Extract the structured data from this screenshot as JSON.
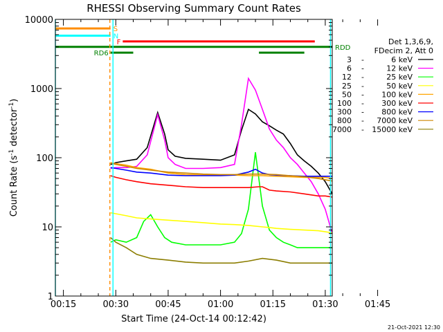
{
  "chart_data": {
    "type": "line",
    "title": "RHESSI Observing Summary Count Rates",
    "xlabel": "Start Time (24-Oct-14 00:12:42)",
    "ylabel_main": "Count Rate (s",
    "ylabel_sup1": "-1",
    "ylabel_mid": " detector",
    "ylabel_sup2": "-1",
    "ylabel_end": ")",
    "y_scale": "log",
    "ylim": [
      1,
      10000
    ],
    "xlim_minutes": [
      12.7,
      92
    ],
    "x_ticks": [
      {
        "min": 15,
        "label": "00:15"
      },
      {
        "min": 30,
        "label": "00:30"
      },
      {
        "min": 45,
        "label": "00:45"
      },
      {
        "min": 60,
        "label": "01:00"
      },
      {
        "min": 75,
        "label": "01:15"
      },
      {
        "min": 90,
        "label": "01:30"
      },
      {
        "min": 105,
        "label": "01:45"
      }
    ],
    "y_ticks": [
      {
        "value": 1,
        "label": "1"
      },
      {
        "value": 10,
        "label": "10"
      },
      {
        "value": 100,
        "label": "100"
      },
      {
        "value": 1000,
        "label": "1000"
      },
      {
        "value": 10000,
        "label": "10000"
      }
    ],
    "legend_header": [
      "Det 1,3,6,9,",
      "FDecim 2, Att 0"
    ],
    "series": [
      {
        "name": "3 - 6 keV",
        "color": "#000000",
        "x": [
          28.5,
          30,
          33,
          36,
          39,
          42,
          44,
          45,
          47,
          50,
          55,
          60,
          64,
          66,
          68,
          70,
          72,
          74,
          76,
          78,
          80,
          82,
          84,
          86,
          88,
          90,
          92
        ],
        "y": [
          80,
          85,
          90,
          95,
          140,
          450,
          220,
          130,
          105,
          98,
          95,
          92,
          110,
          250,
          500,
          430,
          330,
          290,
          250,
          220,
          160,
          110,
          90,
          75,
          60,
          45,
          30
        ]
      },
      {
        "name": "6 - 12 keV",
        "color": "#ff00ff",
        "x": [
          28.5,
          30,
          33,
          36,
          39,
          42,
          44,
          45,
          47,
          50,
          55,
          60,
          64,
          66,
          68,
          70,
          72,
          74,
          76,
          78,
          80,
          82,
          84,
          86,
          88,
          90,
          92
        ],
        "y": [
          70,
          72,
          72,
          75,
          110,
          420,
          180,
          100,
          80,
          70,
          70,
          72,
          80,
          300,
          1400,
          950,
          500,
          260,
          180,
          140,
          100,
          80,
          60,
          45,
          30,
          18,
          8
        ]
      },
      {
        "name": "12 - 25 keV",
        "color": "#00ff00",
        "x": [
          28.5,
          30,
          33,
          36,
          38,
          40,
          42,
          44,
          46,
          50,
          55,
          60,
          64,
          66,
          68,
          70,
          72,
          74,
          76,
          78,
          80,
          82,
          84,
          86,
          88,
          90,
          92
        ],
        "y": [
          6,
          6.5,
          6,
          7,
          12,
          15,
          10,
          7,
          6,
          5.5,
          5.5,
          5.5,
          6,
          8,
          18,
          120,
          20,
          9,
          7,
          6,
          5.5,
          5,
          5,
          5,
          5,
          5,
          5
        ]
      },
      {
        "name": "25 - 50 keV",
        "color": "#ffff00",
        "x": [
          28.5,
          30,
          33,
          36,
          40,
          45,
          50,
          55,
          60,
          64,
          68,
          72,
          74,
          76,
          80,
          84,
          88,
          90,
          92
        ],
        "y": [
          16,
          15.5,
          14.5,
          13.5,
          13,
          12.5,
          12,
          11.5,
          11,
          10.8,
          10.5,
          10,
          9.8,
          9.5,
          9.2,
          9,
          8.8,
          8.5,
          8.2
        ]
      },
      {
        "name": "50 - 100 keV",
        "color": "#ffa500",
        "x": [
          28.5,
          30,
          33,
          36,
          40,
          45,
          50,
          55,
          60,
          64,
          68,
          72,
          76,
          80,
          84,
          88,
          90,
          92
        ],
        "y": [
          85,
          82,
          78,
          72,
          68,
          60,
          57,
          56,
          56,
          56,
          55,
          55,
          54,
          53,
          52,
          52,
          52,
          50
        ]
      },
      {
        "name": "100 - 300 keV",
        "color": "#ff0000",
        "x": [
          28.5,
          30,
          33,
          36,
          40,
          45,
          50,
          55,
          60,
          64,
          68,
          71,
          72,
          74,
          76,
          80,
          84,
          88,
          90,
          92
        ],
        "y": [
          55,
          52,
          48,
          45,
          42,
          40,
          38,
          37,
          37,
          37,
          37,
          38,
          38,
          34,
          33,
          32,
          30,
          28,
          28,
          27
        ]
      },
      {
        "name": "300 - 800 keV",
        "color": "#0000ff",
        "x": [
          28.5,
          30,
          33,
          36,
          40,
          45,
          50,
          55,
          60,
          64,
          68,
          70,
          72,
          74,
          76,
          80,
          84,
          88,
          90,
          92
        ],
        "y": [
          72,
          70,
          66,
          62,
          60,
          56,
          55,
          55,
          55,
          56,
          62,
          68,
          60,
          57,
          56,
          55,
          54,
          54,
          54,
          54
        ]
      },
      {
        "name": "800 - 7000 keV",
        "color": "#cd8500",
        "x": [
          28.5,
          30,
          33,
          36,
          40,
          45,
          50,
          55,
          60,
          64,
          68,
          72,
          76,
          80,
          84,
          88,
          90,
          92
        ],
        "y": [
          84,
          80,
          75,
          70,
          66,
          62,
          60,
          58,
          57,
          57,
          58,
          58,
          57,
          55,
          53,
          50,
          48,
          46
        ]
      },
      {
        "name": "7000 - 15000 keV",
        "color": "#8b7d00",
        "x": [
          28.5,
          30,
          33,
          36,
          40,
          45,
          50,
          55,
          60,
          64,
          68,
          72,
          76,
          80,
          84,
          88,
          90,
          92
        ],
        "y": [
          7,
          6,
          5,
          4,
          3.5,
          3.3,
          3.1,
          3,
          3,
          3,
          3.2,
          3.5,
          3.3,
          3,
          3,
          3,
          3,
          3
        ]
      }
    ],
    "flag_bars": [
      {
        "label": "S",
        "color": "#ff8c00",
        "y": 7400,
        "segments": [
          [
            12.7,
            28.5
          ],
          [
            92,
            92
          ]
        ]
      },
      {
        "label": "N",
        "color": "#00ffff",
        "y": 5800,
        "segments": [
          [
            12.7,
            28.5
          ],
          [
            92,
            92
          ]
        ]
      },
      {
        "label": "F",
        "color": "#ff0000",
        "y": 4800,
        "segments": [
          [
            32,
            87
          ]
        ]
      },
      {
        "label": "RDD",
        "color": "#008000",
        "y": 4000,
        "segments": [
          [
            12.7,
            92
          ]
        ]
      },
      {
        "label": "RD6",
        "color": "#008000",
        "y": 3300,
        "segments": [
          [
            28.5,
            35
          ],
          [
            71,
            84
          ]
        ]
      }
    ],
    "vertical_lines": [
      {
        "min": 12.7,
        "color": "#00ffff",
        "dash": false
      },
      {
        "min": 28.3,
        "color": "#ff8c00",
        "dash": true
      },
      {
        "min": 29.2,
        "color": "#00ffff",
        "dash": false
      },
      {
        "min": 91.5,
        "color": "#00ffff",
        "dash": false
      }
    ],
    "footer": "21-Oct-2021 12:30"
  }
}
